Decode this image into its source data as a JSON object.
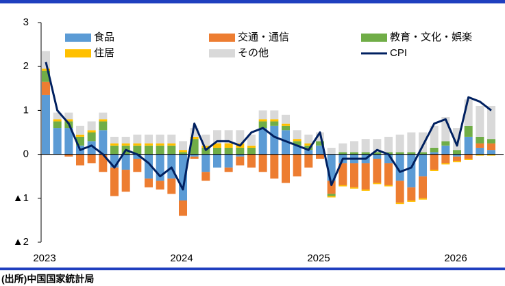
{
  "chart_data": {
    "type": "bar",
    "stacked": true,
    "categories": [
      "2023",
      null,
      null,
      null,
      null,
      null,
      null,
      null,
      null,
      null,
      null,
      null,
      "2024",
      null,
      null,
      null,
      null,
      null,
      null,
      null,
      null,
      null,
      null,
      null,
      "2025",
      null,
      null,
      null,
      null,
      null,
      null,
      null,
      null,
      null,
      null,
      null,
      "2026",
      null,
      null,
      null
    ],
    "ylim": [
      -2,
      3
    ],
    "yticks": [
      3,
      2,
      1,
      0,
      {
        "value": -1,
        "label": "▲1"
      },
      {
        "value": -2,
        "label": "▲2"
      }
    ],
    "series": [
      {
        "name": "食品",
        "color": "#5b9bd5",
        "values": [
          1.35,
          0.6,
          0.6,
          0.2,
          0.3,
          0.55,
          -0.3,
          -0.35,
          -0.1,
          -0.55,
          -0.6,
          -0.55,
          -1.05,
          -0.05,
          -0.4,
          -0.3,
          -0.3,
          -0.05,
          0.0,
          0.6,
          0.65,
          0.55,
          0.2,
          0.1,
          0.2,
          -0.6,
          -0.2,
          -0.2,
          -0.2,
          -0.1,
          -0.2,
          -0.6,
          -0.75,
          -0.5,
          0.05,
          0.2,
          -0.05,
          0.4,
          0.15,
          0.1
        ]
      },
      {
        "name": "交通・通信",
        "color": "#ed7d31",
        "values": [
          0.3,
          0.0,
          -0.05,
          -0.25,
          -0.2,
          -0.4,
          -0.65,
          -0.5,
          -0.3,
          -0.2,
          -0.2,
          -0.35,
          -0.35,
          -0.05,
          -0.2,
          0.0,
          -0.1,
          -0.2,
          -0.3,
          -0.4,
          -0.55,
          -0.65,
          -0.5,
          -0.3,
          -0.1,
          -0.3,
          -0.5,
          -0.55,
          -0.6,
          -0.55,
          -0.5,
          -0.5,
          -0.3,
          -0.5,
          -0.35,
          -0.2,
          -0.1,
          -0.1,
          0.1,
          0.15
        ]
      },
      {
        "name": "教育・文化・娯楽",
        "color": "#70ad47",
        "values": [
          0.25,
          0.15,
          0.15,
          0.2,
          0.2,
          0.2,
          0.2,
          0.2,
          0.2,
          0.2,
          0.2,
          0.2,
          0.05,
          0.35,
          0.15,
          0.15,
          0.15,
          0.15,
          0.15,
          0.15,
          0.1,
          0.1,
          0.1,
          0.1,
          0.1,
          -0.05,
          0.05,
          0.05,
          0.05,
          0.05,
          0.05,
          0.05,
          0.05,
          0.05,
          0.1,
          0.1,
          0.1,
          0.25,
          0.15,
          0.1
        ]
      },
      {
        "name": "住居",
        "color": "#ffc000",
        "values": [
          0.05,
          0.05,
          0.05,
          0.05,
          0.05,
          0.05,
          0.05,
          0.05,
          0.05,
          0.05,
          0.05,
          0.05,
          0.05,
          0.05,
          0.05,
          0.1,
          0.1,
          0.1,
          0.05,
          0.05,
          0.05,
          0.05,
          0.05,
          0.05,
          0.0,
          -0.03,
          -0.03,
          -0.03,
          -0.03,
          -0.03,
          -0.03,
          -0.03,
          -0.03,
          -0.03,
          -0.03,
          -0.03,
          -0.03,
          -0.03,
          -0.03,
          -0.03
        ]
      },
      {
        "name": "その他",
        "color": "#d9d9d9",
        "values": [
          0.4,
          0.15,
          0.15,
          0.2,
          0.2,
          0.15,
          0.15,
          0.15,
          0.2,
          0.2,
          0.2,
          0.2,
          0.2,
          0.2,
          0.25,
          0.3,
          0.3,
          0.3,
          0.25,
          0.2,
          0.2,
          0.2,
          0.2,
          0.2,
          0.2,
          0.15,
          0.2,
          0.25,
          0.3,
          0.3,
          0.35,
          0.4,
          0.45,
          0.45,
          0.5,
          0.55,
          0.5,
          0.6,
          0.7,
          0.75
        ]
      },
      {
        "name": "CPI",
        "color": "#002060",
        "type": "line",
        "values": [
          2.1,
          1.0,
          0.7,
          0.1,
          0.2,
          0.0,
          -0.3,
          0.1,
          0.0,
          -0.2,
          -0.5,
          -0.3,
          -0.8,
          0.7,
          0.1,
          0.3,
          0.3,
          0.2,
          0.5,
          0.6,
          0.4,
          0.3,
          0.2,
          0.1,
          0.5,
          -0.7,
          -0.1,
          -0.1,
          -0.1,
          0.1,
          0.0,
          -0.4,
          -0.3,
          0.2,
          0.7,
          0.8,
          0.2,
          1.3,
          1.2,
          1.0
        ]
      }
    ]
  },
  "footer": "(出所)中国国家統計局"
}
